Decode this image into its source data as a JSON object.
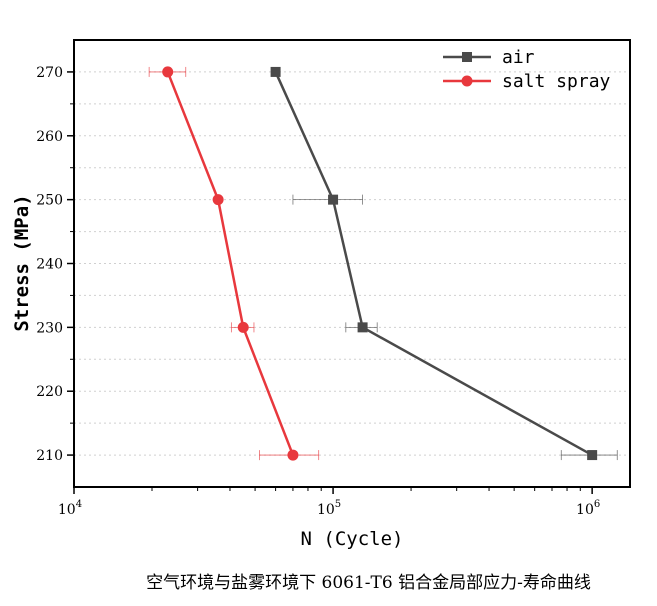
{
  "chart_data": {
    "type": "line",
    "title": "",
    "xlabel": "N (Cycle)",
    "ylabel": "Stress (MPa)",
    "xscale": "log",
    "xlim": [
      10000,
      1400000
    ],
    "ylim": [
      205,
      275
    ],
    "xticks": [
      {
        "value": 10000,
        "base": "10",
        "exp": "4"
      },
      {
        "value": 100000,
        "base": "10",
        "exp": "5"
      },
      {
        "value": 1000000,
        "base": "10",
        "exp": "6"
      }
    ],
    "yticks": [
      "210",
      "220",
      "230",
      "240",
      "250",
      "260",
      "270"
    ],
    "grid": "horizontal dashed",
    "legend_position": "top-right",
    "series": [
      {
        "name": "air",
        "color": "#4a4a4a",
        "marker": "square",
        "points": [
          {
            "x": 60000,
            "y": 270,
            "xerr": [
              60000,
              60000
            ]
          },
          {
            "x": 100000,
            "y": 250,
            "xerr": [
              70000,
              130000
            ]
          },
          {
            "x": 130000,
            "y": 230,
            "xerr": [
              112000,
              148000
            ]
          },
          {
            "x": 1000000,
            "y": 210,
            "xerr": [
              760000,
              1250000
            ]
          }
        ]
      },
      {
        "name": "salt spray",
        "color": "#e8383d",
        "marker": "circle",
        "points": [
          {
            "x": 23000,
            "y": 270,
            "xerr": [
              19500,
              27000
            ]
          },
          {
            "x": 36000,
            "y": 250,
            "xerr": [
              36000,
              36000
            ]
          },
          {
            "x": 45000,
            "y": 230,
            "xerr": [
              40500,
              49500
            ]
          },
          {
            "x": 70000,
            "y": 210,
            "xerr": [
              52000,
              88000
            ]
          }
        ]
      }
    ]
  },
  "caption": "空气环境与盐雾环境下 6061-T6 铝合金局部应力-寿命曲线"
}
